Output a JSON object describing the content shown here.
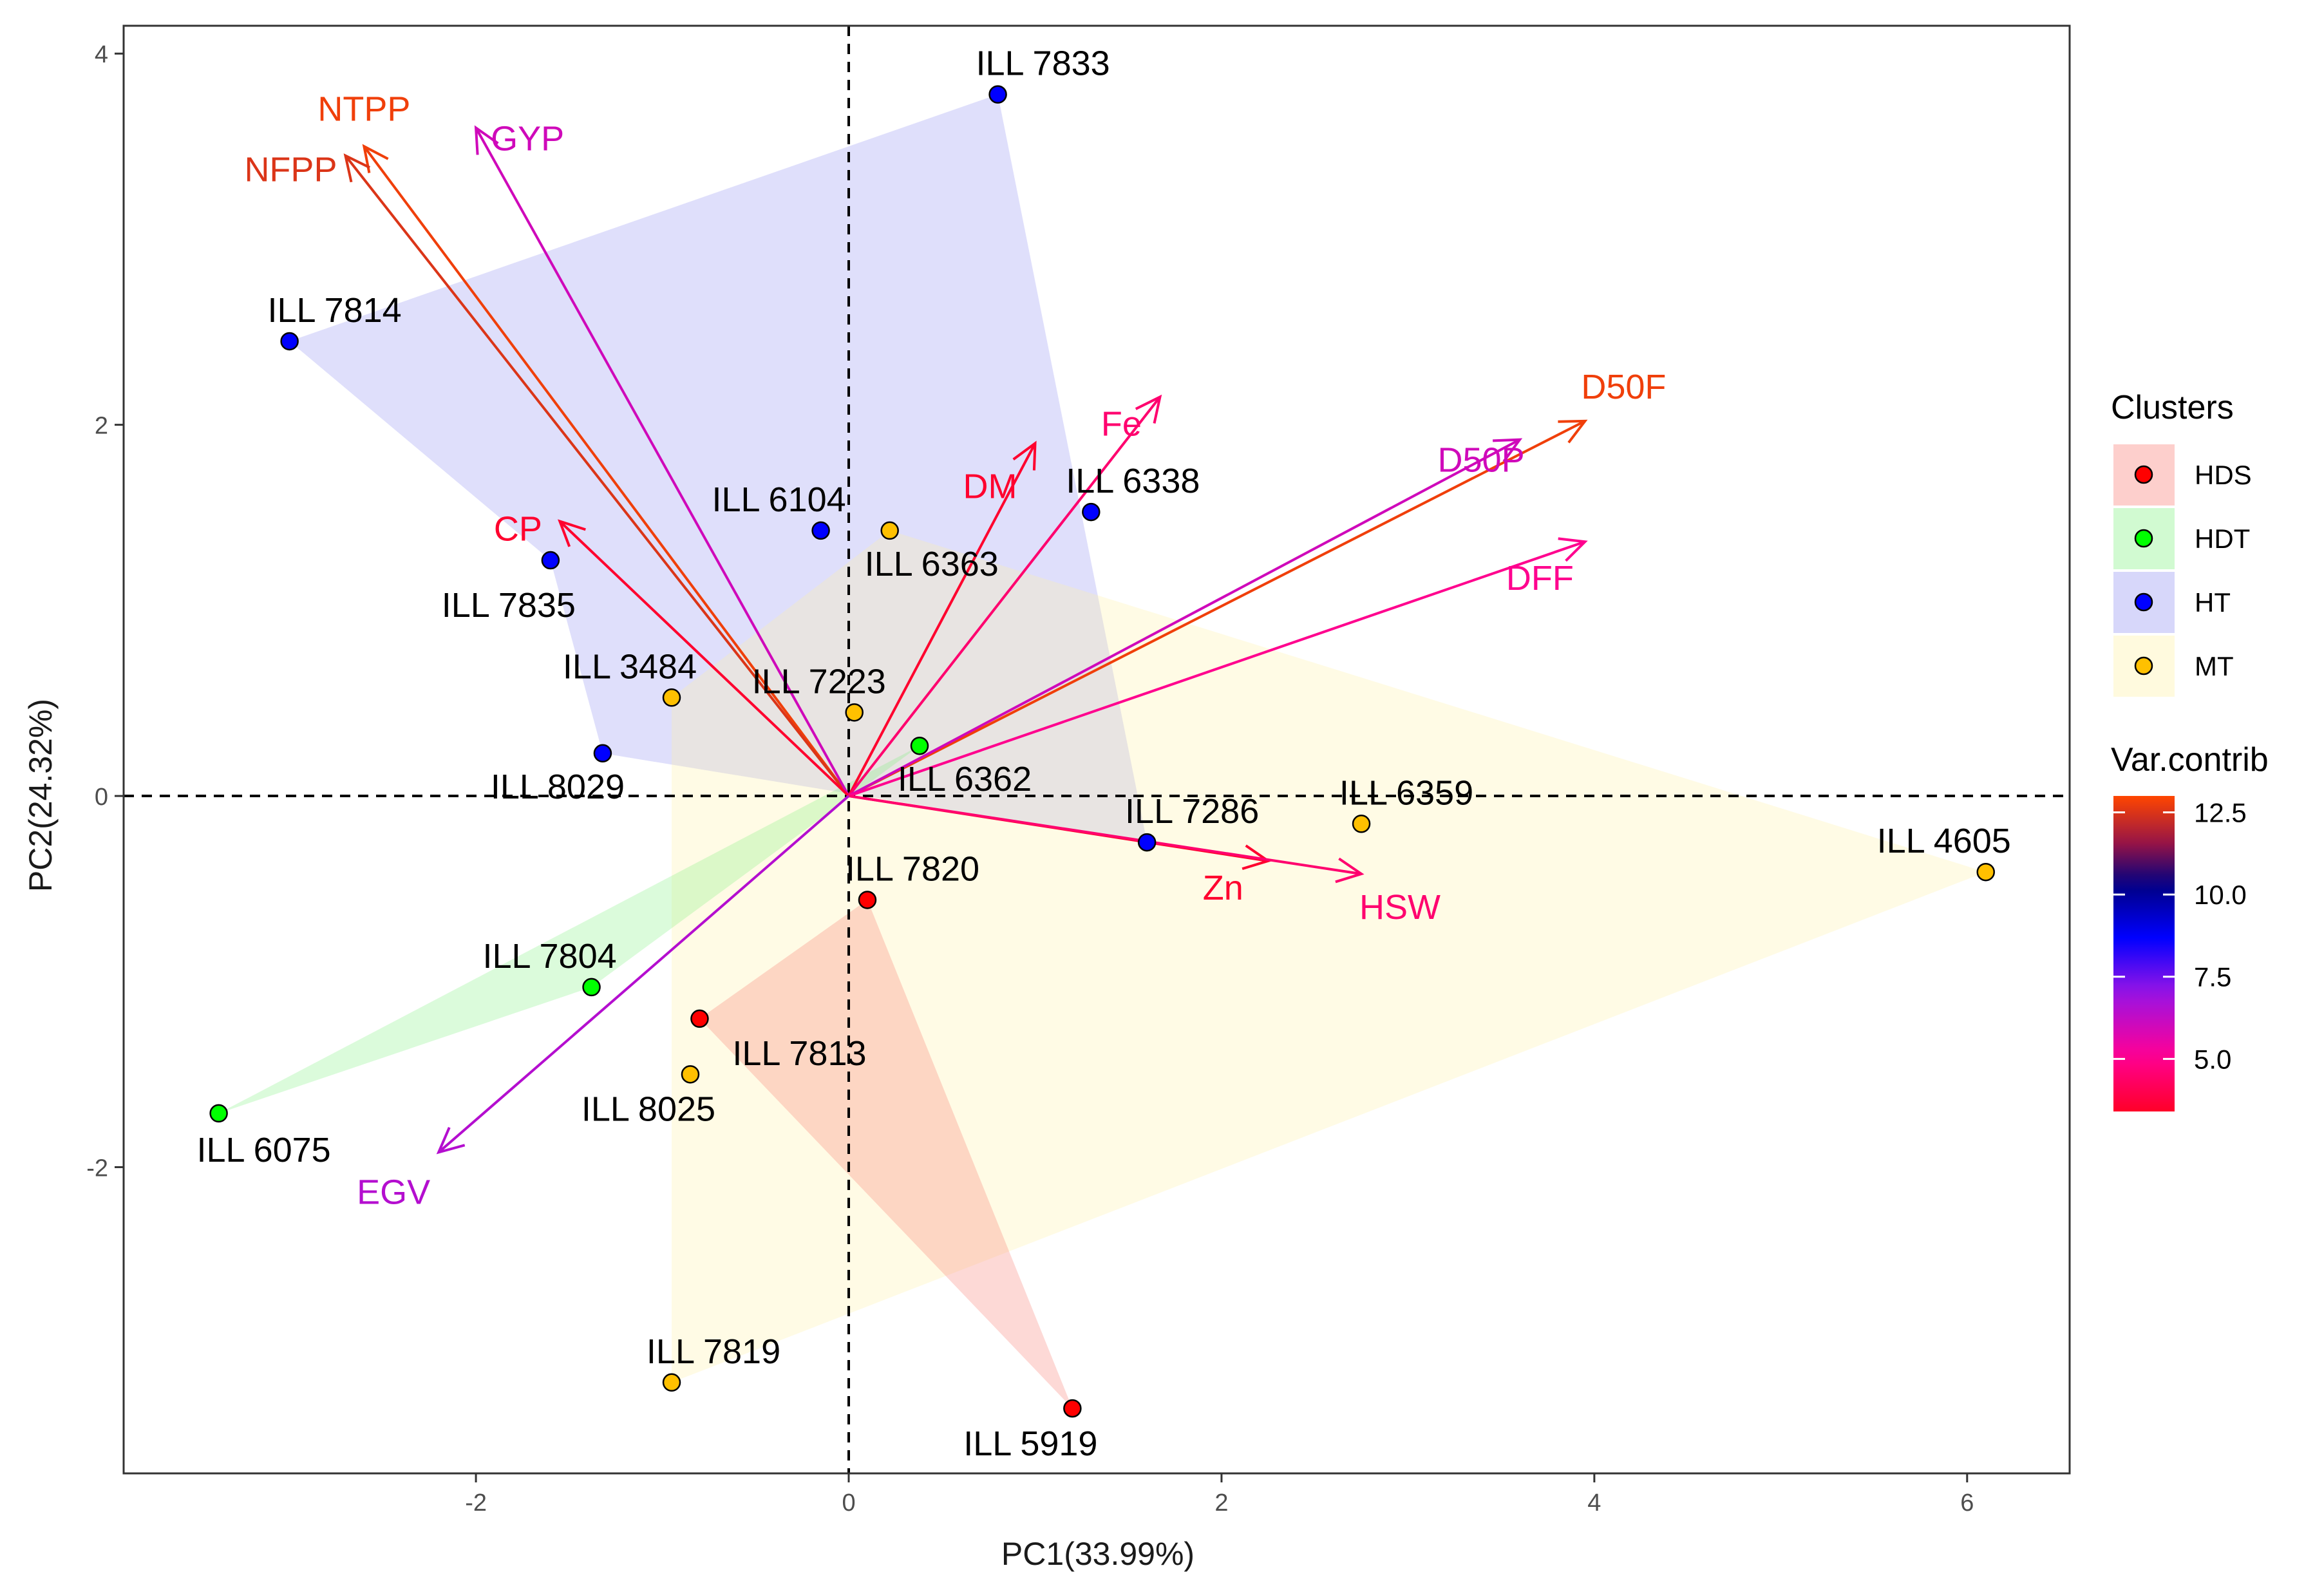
{
  "chart_data": {
    "type": "scatter",
    "subtype": "pca-biplot",
    "xlabel": "PC1(33.99%)",
    "ylabel": "PC2(24.32%)",
    "xlim": [
      -3.89,
      6.55
    ],
    "ylim": [
      -3.65,
      4.15
    ],
    "x_ticks": [
      -2,
      0,
      2,
      4,
      6
    ],
    "y_ticks": [
      -2,
      0,
      2,
      4
    ],
    "x_tick_labels": [
      "-2",
      "0",
      "2",
      "4",
      "6"
    ],
    "y_tick_labels": [
      "-2",
      "0",
      "2",
      "4"
    ],
    "reference_lines": {
      "x": 0,
      "y": 0,
      "style": "dashed"
    },
    "cluster_legend_title": "Clusters",
    "clusters": [
      {
        "name": "HDS",
        "color": "#ff0000",
        "fill": "#f8766d"
      },
      {
        "name": "HDT",
        "color": "#00ff00",
        "fill": "#7cf07c"
      },
      {
        "name": "HT",
        "color": "#0000ff",
        "fill": "#8c8cf0"
      },
      {
        "name": "MT",
        "color": "#ffc000",
        "fill": "#fff0a0"
      }
    ],
    "hulls": [
      {
        "cluster": "HT",
        "points": [
          [
            -3.0,
            2.45
          ],
          [
            0.8,
            3.78
          ],
          [
            1.6,
            -0.25
          ],
          [
            -1.32,
            0.23
          ],
          [
            -1.6,
            1.27
          ]
        ]
      },
      {
        "cluster": "MT",
        "points": [
          [
            -0.95,
            0.53
          ],
          [
            0.22,
            1.43
          ],
          [
            6.1,
            -0.41
          ],
          [
            -0.95,
            -3.16
          ]
        ]
      },
      {
        "cluster": "HDT",
        "points": [
          [
            -3.38,
            -1.71
          ],
          [
            0.38,
            0.27
          ],
          [
            -1.38,
            -1.03
          ]
        ]
      },
      {
        "cluster": "HDS",
        "points": [
          [
            0.1,
            -0.56
          ],
          [
            1.2,
            -3.3
          ],
          [
            -0.8,
            -1.2
          ]
        ]
      }
    ],
    "points": [
      {
        "label": "ILL 7833",
        "x": 0.8,
        "y": 3.78,
        "cluster": "HT"
      },
      {
        "label": "ILL 7814",
        "x": -3.0,
        "y": 2.45,
        "cluster": "HT"
      },
      {
        "label": "ILL 6104",
        "x": -0.15,
        "y": 1.43,
        "cluster": "HT"
      },
      {
        "label": "ILL 6338",
        "x": 1.3,
        "y": 1.53,
        "cluster": "HT"
      },
      {
        "label": "ILL 6363",
        "x": 0.22,
        "y": 1.43,
        "cluster": "MT"
      },
      {
        "label": "ILL 7835",
        "x": -1.6,
        "y": 1.27,
        "cluster": "HT"
      },
      {
        "label": "ILL 3484",
        "x": -0.95,
        "y": 0.53,
        "cluster": "MT"
      },
      {
        "label": "ILL 7223",
        "x": 0.03,
        "y": 0.45,
        "cluster": "MT"
      },
      {
        "label": "ILL 8029",
        "x": -1.32,
        "y": 0.23,
        "cluster": "HT"
      },
      {
        "label": "ILL 6362",
        "x": 0.38,
        "y": 0.27,
        "cluster": "HDT"
      },
      {
        "label": "ILL 6359",
        "x": 2.75,
        "y": -0.15,
        "cluster": "MT"
      },
      {
        "label": "ILL 7286",
        "x": 1.6,
        "y": -0.25,
        "cluster": "HT"
      },
      {
        "label": "ILL 4605",
        "x": 6.1,
        "y": -0.41,
        "cluster": "MT"
      },
      {
        "label": "ILL 7820",
        "x": 0.1,
        "y": -0.56,
        "cluster": "HDS"
      },
      {
        "label": "ILL 7804",
        "x": -1.38,
        "y": -1.03,
        "cluster": "HDT"
      },
      {
        "label": "ILL 7813",
        "x": -0.8,
        "y": -1.2,
        "cluster": "HDS"
      },
      {
        "label": "ILL 8025",
        "x": -0.85,
        "y": -1.5,
        "cluster": "MT"
      },
      {
        "label": "ILL 6075",
        "x": -3.38,
        "y": -1.71,
        "cluster": "HDT"
      },
      {
        "label": "ILL 7819",
        "x": -0.95,
        "y": -3.16,
        "cluster": "MT"
      },
      {
        "label": "ILL 5919",
        "x": 1.2,
        "y": -3.3,
        "cluster": "HDS"
      }
    ],
    "variables": [
      {
        "name": "NTPP",
        "x": -2.6,
        "y": 3.5,
        "contrib": 12.8
      },
      {
        "name": "NFPP",
        "x": -2.7,
        "y": 3.45,
        "contrib": 12.5
      },
      {
        "name": "GYP",
        "x": -2.0,
        "y": 3.6,
        "contrib": 6.0
      },
      {
        "name": "CP",
        "x": -1.55,
        "y": 1.48,
        "contrib": 3.5
      },
      {
        "name": "DM",
        "x": 1.0,
        "y": 1.9,
        "contrib": 3.5
      },
      {
        "name": "Fe",
        "x": 1.67,
        "y": 2.15,
        "contrib": 4.5
      },
      {
        "name": "D50F",
        "x": 3.95,
        "y": 2.02,
        "contrib": 12.8
      },
      {
        "name": "D50P",
        "x": 3.6,
        "y": 1.92,
        "contrib": 6.0
      },
      {
        "name": "DFF",
        "x": 3.95,
        "y": 1.37,
        "contrib": 5.0
      },
      {
        "name": "Zn",
        "x": 2.25,
        "y": -0.35,
        "contrib": 3.5
      },
      {
        "name": "HSW",
        "x": 2.75,
        "y": -0.42,
        "contrib": 4.5
      },
      {
        "name": "EGV",
        "x": -2.2,
        "y": -1.92,
        "contrib": 6.5
      }
    ],
    "contrib_legend_title": "Var.contrib",
    "contrib_range": [
      3.4,
      13.0
    ],
    "contrib_ticks": [
      12.5,
      10.0,
      7.5,
      5.0
    ],
    "contrib_tick_labels": [
      "12.5",
      "10.0",
      "7.5",
      "5.0"
    ],
    "contrib_gradient": [
      "#ff0000",
      "#ff00a0",
      "#0000ff",
      "#000080",
      "#ff4000"
    ]
  }
}
